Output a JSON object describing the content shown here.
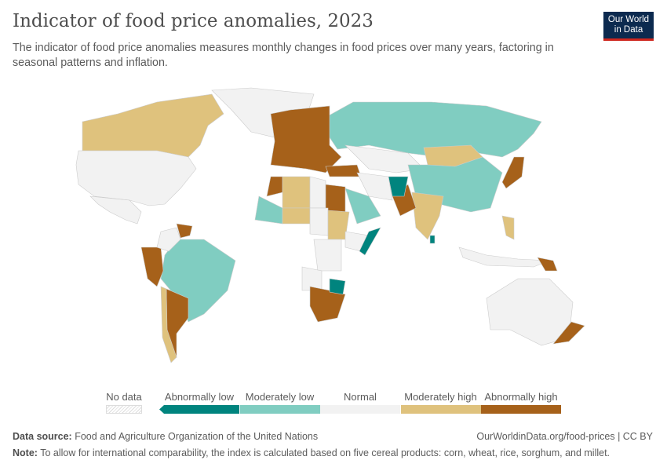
{
  "header": {
    "title": "Indicator of food price anomalies, 2023",
    "subtitle": "The indicator of food price anomalies measures monthly changes in food prices over many years, factoring in seasonal patterns and inflation.",
    "logo": "Our World in Data"
  },
  "legend": {
    "no_data": "No data",
    "categories": [
      {
        "label": "Abnormally low",
        "color": "#00847e"
      },
      {
        "label": "Moderately low",
        "color": "#80cdc1"
      },
      {
        "label": "Normal",
        "color": "#f2f2f2"
      },
      {
        "label": "Moderately high",
        "color": "#dfc27d"
      },
      {
        "label": "Abnormally high",
        "color": "#a6611a"
      }
    ]
  },
  "map_data": {
    "year": "2023",
    "regions": [
      {
        "country": "Canada",
        "category": "Moderately high"
      },
      {
        "country": "United States",
        "category": "Normal"
      },
      {
        "country": "Greenland",
        "category": "Normal"
      },
      {
        "country": "Mexico",
        "category": "Normal"
      },
      {
        "country": "Brazil",
        "category": "Moderately low"
      },
      {
        "country": "Peru",
        "category": "Abnormally high"
      },
      {
        "country": "Argentina",
        "category": "Abnormally high"
      },
      {
        "country": "Chile",
        "category": "Moderately high"
      },
      {
        "country": "Colombia",
        "category": "Normal"
      },
      {
        "country": "Venezuela",
        "category": "Abnormally high"
      },
      {
        "country": "Russia",
        "category": "Moderately low"
      },
      {
        "country": "Western Europe",
        "category": "Abnormally high"
      },
      {
        "country": "Turkey",
        "category": "Abnormally high"
      },
      {
        "country": "Kazakhstan",
        "category": "Normal"
      },
      {
        "country": "Mongolia",
        "category": "Moderately high"
      },
      {
        "country": "China",
        "category": "Moderately low"
      },
      {
        "country": "India",
        "category": "Moderately high"
      },
      {
        "country": "Pakistan",
        "category": "Abnormally high"
      },
      {
        "country": "Afghanistan",
        "category": "Abnormally low"
      },
      {
        "country": "Iran",
        "category": "Normal"
      },
      {
        "country": "Saudi Arabia",
        "category": "Moderately low"
      },
      {
        "country": "Morocco",
        "category": "Abnormally high"
      },
      {
        "country": "Algeria",
        "category": "Moderately high"
      },
      {
        "country": "Libya",
        "category": "Normal"
      },
      {
        "country": "Egypt",
        "category": "Abnormally high"
      },
      {
        "country": "Mali",
        "category": "Moderately low"
      },
      {
        "country": "Niger",
        "category": "Moderately high"
      },
      {
        "country": "Chad",
        "category": "Normal"
      },
      {
        "country": "Sudan",
        "category": "Moderately high"
      },
      {
        "country": "Ethiopia",
        "category": "Normal"
      },
      {
        "country": "Somalia",
        "category": "Abnormally low"
      },
      {
        "country": "DR Congo",
        "category": "Normal"
      },
      {
        "country": "Angola",
        "category": "Normal"
      },
      {
        "country": "South Africa",
        "category": "Abnormally high"
      },
      {
        "country": "Zimbabwe",
        "category": "Abnormally low"
      },
      {
        "country": "Japan",
        "category": "Abnormally high"
      },
      {
        "country": "Philippines",
        "category": "Moderately high"
      },
      {
        "country": "Indonesia",
        "category": "Normal"
      },
      {
        "country": "Australia",
        "category": "Normal"
      },
      {
        "country": "Papua New Guinea",
        "category": "Abnormally high"
      },
      {
        "country": "New Zealand",
        "category": "Abnormally high"
      },
      {
        "country": "Sri Lanka",
        "category": "Abnormally low"
      }
    ]
  },
  "footer": {
    "source_label": "Data source:",
    "source": "Food and Agriculture Organization of the United Nations",
    "url": "OurWorldinData.org/food-prices | CC BY",
    "note_label": "Note:",
    "note": "To allow for international comparability, the index is calculated based on five cereal products: corn, wheat, rice, sorghum, and millet."
  }
}
